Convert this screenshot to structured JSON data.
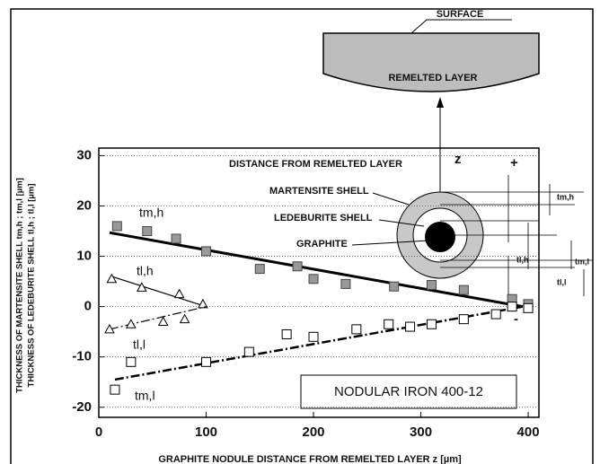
{
  "chart_data": {
    "type": "scatter",
    "xlabel": "GRAPHITE NODULE  DISTANCE FROM REMELTED LAYER z [µm]",
    "ylabels": [
      "THICKNESS OF MARTENSITE SHELL tm,h ; tm,l [µm]",
      "THICKNESS OF LEDEBURITE SHELL tl,h ; tl,l [µm]"
    ],
    "xlim": [
      0,
      410
    ],
    "ylim": [
      -22,
      31.5
    ],
    "xticks": [
      0,
      100,
      200,
      300,
      400
    ],
    "yticks": [
      -20,
      -10,
      0,
      10,
      20,
      30
    ],
    "grid": true,
    "series": [
      {
        "name": "tm,h",
        "marker": "filled-square",
        "color": "#999999",
        "x": [
          17,
          45,
          72,
          100,
          150,
          185,
          200,
          230,
          275,
          310,
          340,
          385,
          400
        ],
        "values": [
          16,
          15,
          13.5,
          11,
          7.5,
          8,
          5.5,
          4.5,
          4,
          4.3,
          3.3,
          1.5,
          0.5
        ],
        "fit": {
          "x": [
            10,
            395
          ],
          "values": [
            14.7,
            0
          ],
          "dash": "solid"
        }
      },
      {
        "name": "tl,h",
        "marker": "triangle",
        "color": "#ffffff",
        "x": [
          12,
          40,
          75,
          97
        ],
        "values": [
          5.5,
          3.8,
          2.5,
          0.5
        ],
        "fit": {
          "x": [
            12,
            100
          ],
          "values": [
            6,
            0
          ],
          "dash": "solid"
        }
      },
      {
        "name": "tl,l",
        "marker": "triangle",
        "color": "#ffffff",
        "x": [
          10,
          30,
          60,
          80
        ],
        "values": [
          -4.5,
          -3.5,
          -3,
          -2.5
        ],
        "fit": {
          "x": [
            10,
            100
          ],
          "values": [
            -4.5,
            0
          ],
          "dash": "dashdot"
        }
      },
      {
        "name": "tm,l",
        "marker": "open-square",
        "color": "#ffffff",
        "x": [
          15,
          30,
          100,
          140,
          175,
          200,
          240,
          270,
          290,
          310,
          340,
          370,
          385,
          400
        ],
        "values": [
          -16.5,
          -11,
          -11,
          -9,
          -5.5,
          -6,
          -4.5,
          -3.5,
          -4,
          -3.5,
          -2.5,
          -1.5,
          0,
          -0.3
        ],
        "fit": {
          "x": [
            15,
            395
          ],
          "values": [
            -14.5,
            0
          ],
          "dash": "dashdot"
        }
      }
    ],
    "annotations": [
      "DISTANCE FROM REMELTED LAYER",
      "MARTENSITE SHELL",
      "LEDEBURITE SHELL",
      "GRAPHITE",
      "NODULAR IRON 400-12",
      "SURFACE",
      "REMELTED LAYER",
      "z",
      "+",
      "-",
      "tm,h",
      "tl,h",
      "tm,l",
      "tl,l"
    ]
  }
}
